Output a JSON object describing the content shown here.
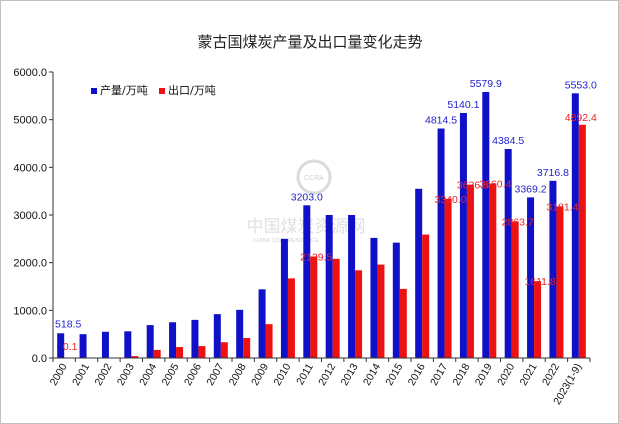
{
  "chart_data": {
    "type": "bar",
    "title": "蒙古国煤炭产量及出口量变化走势",
    "categories": [
      "2000",
      "2001",
      "2002",
      "2003",
      "2004",
      "2005",
      "2006",
      "2007",
      "2008",
      "2009",
      "2010",
      "2011",
      "2012",
      "2013",
      "2014",
      "2015",
      "2016",
      "2017",
      "2018",
      "2019",
      "2020",
      "2021",
      "2022",
      "2023(1-9)"
    ],
    "series": [
      {
        "name": "产量/万吨",
        "color": "#1010c8",
        "values": [
          518.5,
          500,
          550,
          560,
          690,
          750,
          800,
          920,
          1010,
          1440,
          2500,
          3203.0,
          3000,
          3000,
          2520,
          2420,
          3550,
          4814.5,
          5140.1,
          5579.9,
          4384.5,
          3369.2,
          3716.8,
          5553.0
        ]
      },
      {
        "name": "出口/万吨",
        "color": "#ee1111",
        "values": [
          0.1,
          5,
          10,
          40,
          170,
          230,
          250,
          330,
          420,
          710,
          1670,
          2129.5,
          2080,
          1840,
          1960,
          1450,
          2590,
          3340.0,
          3636.5,
          3660.4,
          2863.7,
          1611.8,
          3181.4,
          4892.4
        ]
      }
    ],
    "data_labels": [
      {
        "series": 0,
        "index": 0,
        "text": "518.5"
      },
      {
        "series": 1,
        "index": 0,
        "text": "0.1"
      },
      {
        "series": 0,
        "index": 11,
        "text": "3203.0"
      },
      {
        "series": 1,
        "index": 11,
        "text": "2129.5"
      },
      {
        "series": 0,
        "index": 17,
        "text": "4814.5"
      },
      {
        "series": 1,
        "index": 17,
        "text": "3340.0"
      },
      {
        "series": 0,
        "index": 18,
        "text": "5140.1"
      },
      {
        "series": 1,
        "index": 18,
        "text": "3636.5"
      },
      {
        "series": 0,
        "index": 19,
        "text": "5579.9"
      },
      {
        "series": 1,
        "index": 19,
        "text": "3660.4"
      },
      {
        "series": 0,
        "index": 20,
        "text": "4384.5"
      },
      {
        "series": 1,
        "index": 20,
        "text": "2863.7"
      },
      {
        "series": 0,
        "index": 21,
        "text": "3369.2"
      },
      {
        "series": 1,
        "index": 21,
        "text": "1611.8"
      },
      {
        "series": 0,
        "index": 22,
        "text": "3716.8"
      },
      {
        "series": 1,
        "index": 22,
        "text": "3181.4"
      },
      {
        "series": 0,
        "index": 23,
        "text": "5553.0"
      },
      {
        "series": 1,
        "index": 23,
        "text": "4892.4"
      }
    ],
    "ylim": [
      0,
      6000
    ],
    "yticks": [
      "0.0",
      "1000.0",
      "2000.0",
      "3000.0",
      "4000.0",
      "5000.0",
      "6000.0"
    ],
    "ytick_values": [
      0,
      1000,
      2000,
      3000,
      4000,
      5000,
      6000
    ],
    "legend_position": "top-left",
    "grid": false,
    "xlabel": "",
    "ylabel": ""
  },
  "watermark": {
    "name": "中国煤炭资源网",
    "subtitle": "CHINA COAL RESOURCE",
    "logo_text": "CCRA"
  }
}
